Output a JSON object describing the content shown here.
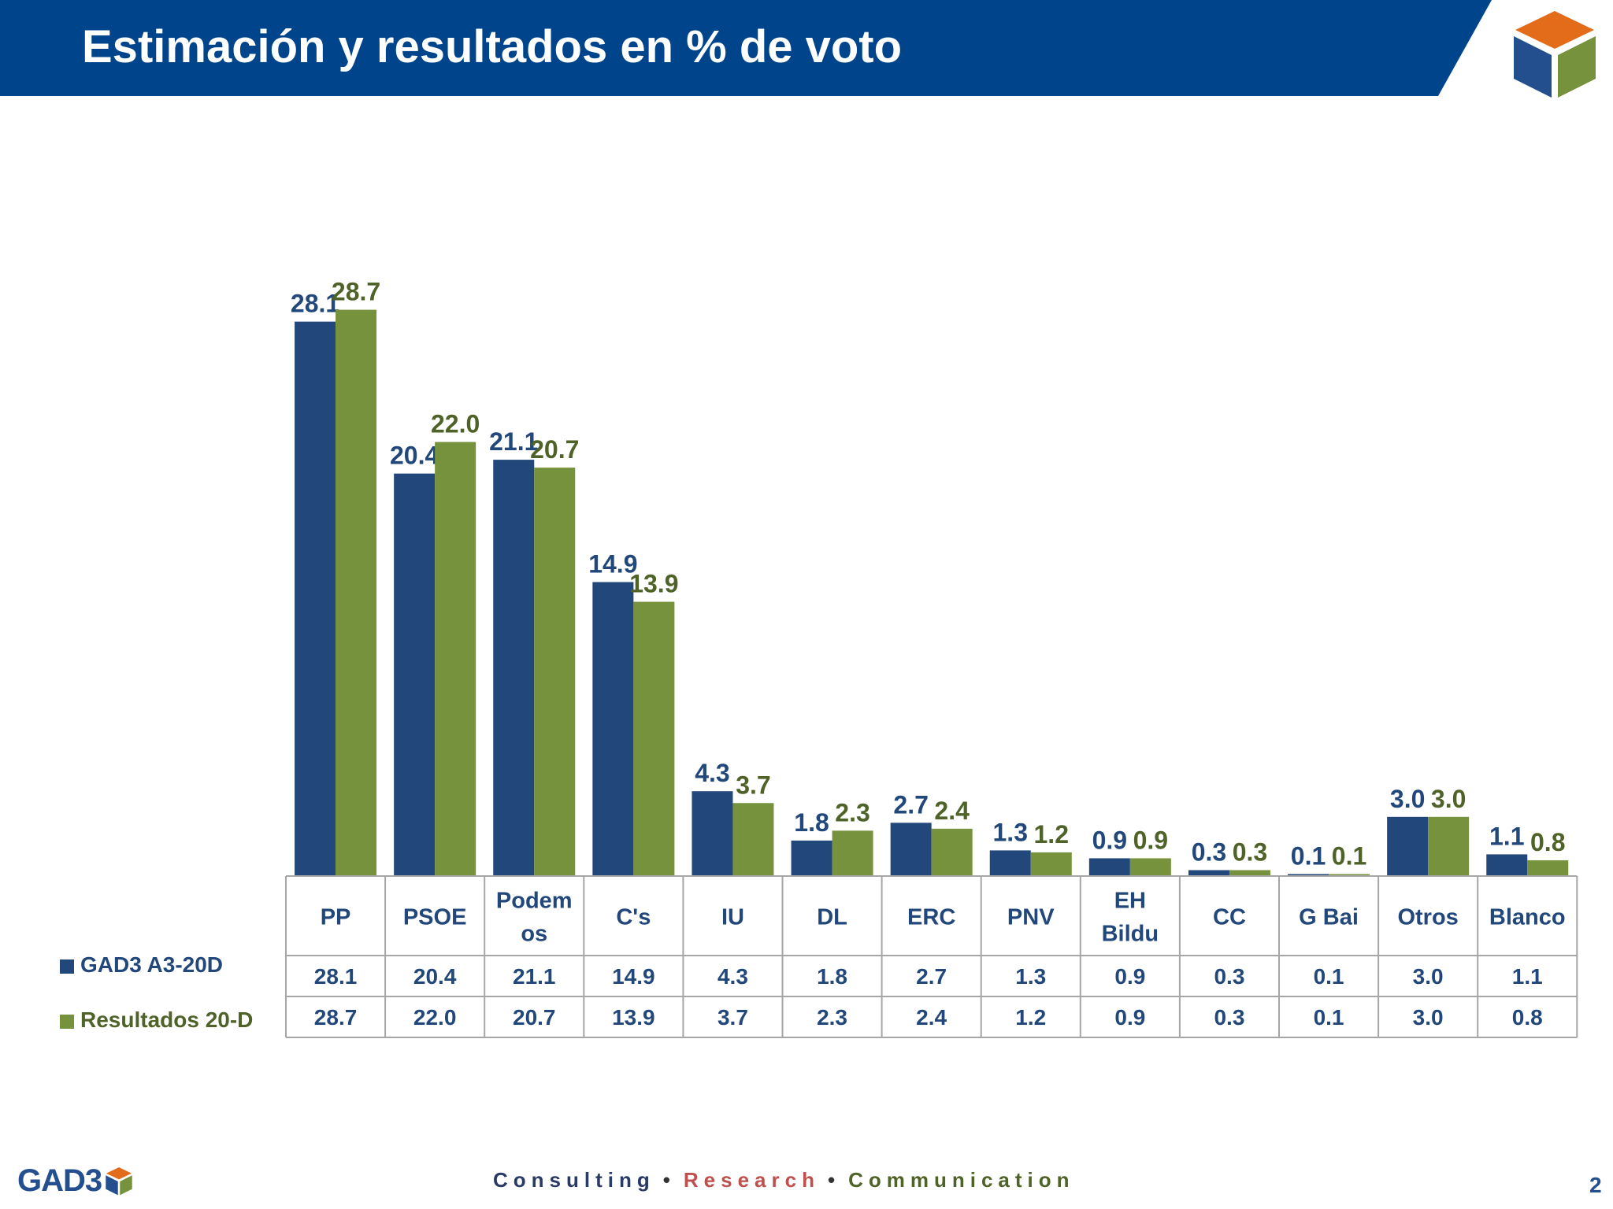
{
  "header": {
    "title": "Estimación y resultados en % de voto"
  },
  "colors": {
    "header_blue": "#00458c",
    "series_gad3": "#22477b",
    "series_resultados": "#76923c",
    "cube_orange": "#e36c1a",
    "cube_blue": "#244f8f",
    "cube_green": "#76923c"
  },
  "legend": {
    "gad3": "GAD3 A3-20D",
    "resultados": "Resultados 20-D"
  },
  "chart_data": {
    "type": "bar",
    "categories": [
      [
        "PP"
      ],
      [
        "PSOE"
      ],
      [
        "Podem",
        "os"
      ],
      [
        "C's"
      ],
      [
        "IU"
      ],
      [
        "DL"
      ],
      [
        "ERC"
      ],
      [
        "PNV"
      ],
      [
        "EH",
        "Bildu"
      ],
      [
        "CC"
      ],
      [
        "G Bai"
      ],
      [
        "Otros"
      ],
      [
        "Blanco"
      ]
    ],
    "series": [
      {
        "name": "GAD3 A3-20D",
        "values": [
          28.1,
          20.4,
          21.1,
          14.9,
          4.3,
          1.8,
          2.7,
          1.3,
          0.9,
          0.3,
          0.1,
          3.0,
          1.1
        ]
      },
      {
        "name": "Resultados 20-D",
        "values": [
          28.7,
          22.0,
          20.7,
          13.9,
          3.7,
          2.3,
          2.4,
          1.2,
          0.9,
          0.3,
          0.1,
          3.0,
          0.8
        ]
      }
    ],
    "ylim": [
      0,
      30
    ],
    "data_labels": true,
    "data_table": true,
    "grid": false,
    "legend_position": "left of data table"
  },
  "footer": {
    "logo_text": "GAD3",
    "tagline": [
      "Consulting",
      "Research",
      "Communication"
    ],
    "tagline_colors": [
      "#2a3a66",
      "#c0504d",
      "#4f6228"
    ],
    "page_number": "2"
  }
}
